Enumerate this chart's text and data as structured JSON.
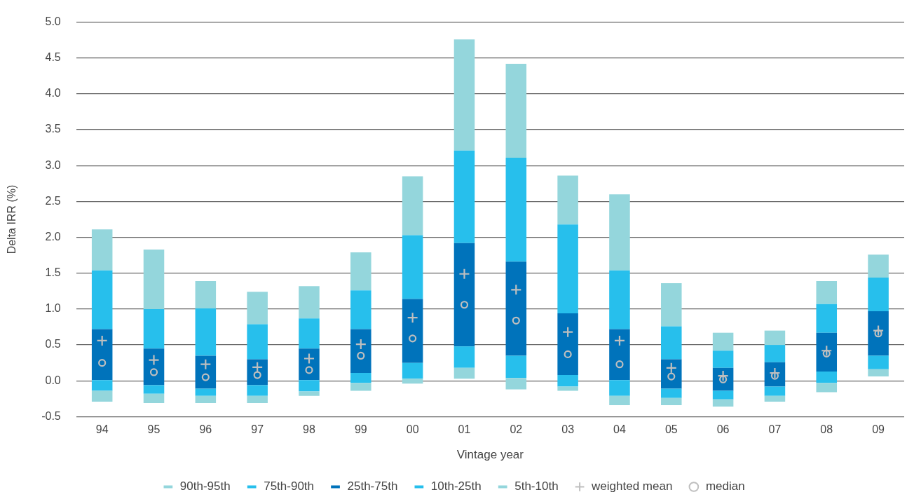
{
  "chart_data": {
    "type": "bar",
    "xlabel": "Vintage year",
    "ylabel": "Delta IRR (%)",
    "categories": [
      "94",
      "95",
      "96",
      "97",
      "98",
      "99",
      "00",
      "01",
      "02",
      "03",
      "04",
      "05",
      "06",
      "07",
      "08",
      "09"
    ],
    "series": [
      {
        "name": "5th-10th",
        "color": "#94d6dc",
        "base": [
          -0.29,
          -0.31,
          -0.31,
          -0.31,
          -0.21,
          -0.14,
          -0.04,
          0.03,
          -0.12,
          -0.14,
          -0.34,
          -0.34,
          -0.36,
          -0.29,
          -0.16,
          0.06
        ],
        "values": [
          0.15,
          0.13,
          0.1,
          0.1,
          0.06,
          0.11,
          0.07,
          0.15,
          0.16,
          0.06,
          0.13,
          0.1,
          0.1,
          0.08,
          0.13,
          0.1
        ]
      },
      {
        "name": "10th-25th",
        "color": "#27bfec",
        "base": [
          -0.14,
          -0.18,
          -0.21,
          -0.21,
          -0.15,
          -0.03,
          0.03,
          0.18,
          0.04,
          -0.08,
          -0.21,
          -0.24,
          -0.26,
          -0.21,
          -0.03,
          0.16
        ],
        "values": [
          0.15,
          0.12,
          0.1,
          0.15,
          0.16,
          0.14,
          0.22,
          0.3,
          0.31,
          0.16,
          0.22,
          0.13,
          0.12,
          0.13,
          0.16,
          0.19
        ]
      },
      {
        "name": "25th-75th",
        "color": "#0073bb",
        "base": [
          0.01,
          -0.06,
          -0.11,
          -0.06,
          0.01,
          0.11,
          0.25,
          0.48,
          0.35,
          0.08,
          0.01,
          -0.11,
          -0.14,
          -0.08,
          0.13,
          0.35
        ],
        "values": [
          0.71,
          0.51,
          0.46,
          0.36,
          0.44,
          0.61,
          0.89,
          1.44,
          1.31,
          0.86,
          0.71,
          0.41,
          0.32,
          0.34,
          0.54,
          0.62
        ]
      },
      {
        "name": "75th-90th",
        "color": "#27bfec",
        "base": [
          0.72,
          0.45,
          0.35,
          0.3,
          0.45,
          0.72,
          1.14,
          1.92,
          1.66,
          0.94,
          0.72,
          0.3,
          0.18,
          0.26,
          0.67,
          0.97
        ],
        "values": [
          0.82,
          0.55,
          0.66,
          0.49,
          0.42,
          0.54,
          0.89,
          1.29,
          1.45,
          1.24,
          0.82,
          0.46,
          0.24,
          0.24,
          0.4,
          0.47
        ]
      },
      {
        "name": "90th-95th",
        "color": "#94d6dc",
        "base": [
          1.54,
          1.0,
          1.01,
          0.79,
          0.87,
          1.26,
          2.03,
          3.21,
          3.11,
          2.18,
          1.54,
          0.76,
          0.42,
          0.5,
          1.07,
          1.44
        ],
        "values": [
          0.57,
          0.83,
          0.38,
          0.45,
          0.45,
          0.53,
          0.82,
          1.55,
          1.31,
          0.68,
          1.06,
          0.6,
          0.25,
          0.2,
          0.32,
          0.32
        ]
      },
      {
        "name": "weighted mean",
        "type": "scatter",
        "marker": "cross",
        "color": "#bfbfbf",
        "x": [
          "94",
          "95",
          "96",
          "97",
          "98",
          "99",
          "00",
          "01",
          "02",
          "03",
          "04",
          "05",
          "06",
          "07",
          "08",
          "09"
        ],
        "values": [
          0.56,
          0.29,
          0.23,
          0.19,
          0.31,
          0.51,
          0.88,
          1.49,
          1.27,
          0.68,
          0.56,
          0.18,
          0.07,
          0.11,
          0.42,
          0.7
        ]
      },
      {
        "name": "median",
        "type": "scatter",
        "marker": "circle",
        "color": "#bfbfbf",
        "x": [
          "94",
          "95",
          "96",
          "97",
          "98",
          "99",
          "00",
          "01",
          "02",
          "03",
          "04",
          "05",
          "06",
          "07",
          "08",
          "09"
        ],
        "values": [
          0.25,
          0.12,
          0.05,
          0.08,
          0.15,
          0.35,
          0.59,
          1.06,
          0.84,
          0.37,
          0.23,
          0.06,
          0.02,
          0.07,
          0.38,
          0.66
        ]
      }
    ],
    "ylim": [
      -0.5,
      5.0
    ],
    "yticks": [
      {
        "value": -0.5,
        "label": "-0.5"
      },
      {
        "value": 0,
        "label": "0.0"
      },
      {
        "value": 0.5,
        "label": "0.5"
      },
      {
        "value": 1,
        "label": "1.0"
      },
      {
        "value": 1.5,
        "label": "1.5"
      },
      {
        "value": 2,
        "label": "2.0"
      },
      {
        "value": 2.5,
        "label": "2.5"
      },
      {
        "value": 3,
        "label": "3.0"
      },
      {
        "value": 3.5,
        "label": "3.5"
      },
      {
        "value": 4,
        "label": "4.0"
      },
      {
        "value": 4.5,
        "label": "4.5"
      },
      {
        "value": 5,
        "label": "5.0"
      }
    ],
    "grid": "y",
    "legend": "bottom"
  }
}
